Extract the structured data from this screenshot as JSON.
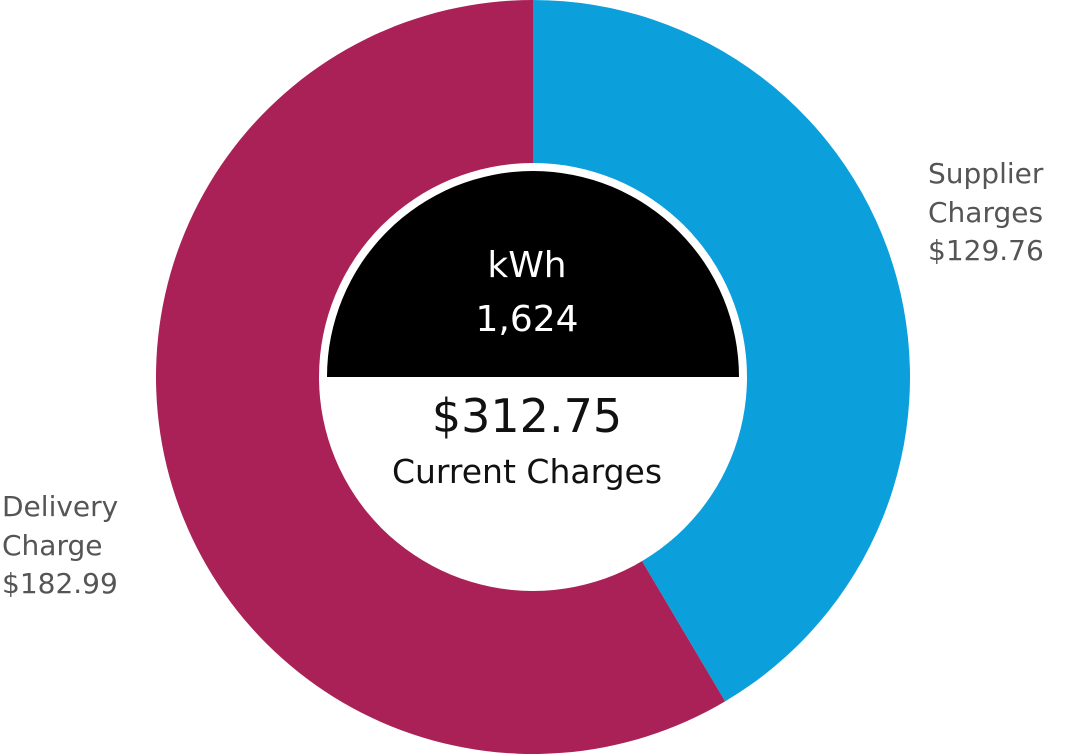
{
  "chart_data": {
    "type": "pie",
    "variant": "donut",
    "slices": [
      {
        "label_lines": [
          "Supplier",
          "Charges"
        ],
        "value_text": "$129.76",
        "value": 129.76,
        "color": "#0b9fdb"
      },
      {
        "label_lines": [
          "Delivery",
          "Charge"
        ],
        "value_text": "$182.99",
        "value": 182.99,
        "color": "#aa2157"
      }
    ],
    "center": {
      "usage_label": "kWh",
      "usage_value": "1,624",
      "total": "$312.75",
      "total_label": "Current Charges",
      "usage_bg": "#000000"
    }
  }
}
